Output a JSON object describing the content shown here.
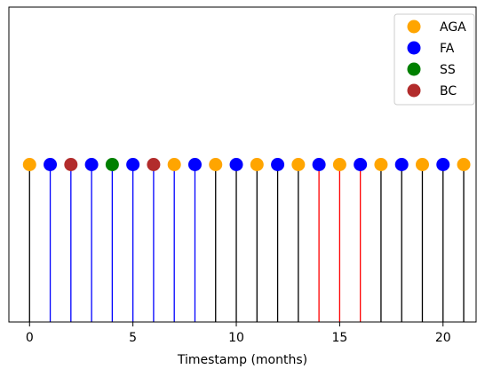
{
  "chart_data": {
    "type": "stem",
    "title": "",
    "xlabel": "Timestamp (months)",
    "ylabel": "",
    "xlim": [
      -1,
      21.6
    ],
    "ylim": [
      0,
      1.0
    ],
    "xticks": [
      0,
      5,
      10,
      15,
      20
    ],
    "yticks": [],
    "legend_position": "top-right",
    "series": [
      {
        "name": "AGA",
        "color": "#FFA500"
      },
      {
        "name": "FA",
        "color": "#0000FF"
      },
      {
        "name": "SS",
        "color": "#008000"
      },
      {
        "name": "BC",
        "color": "#B22C2C"
      }
    ],
    "line_colors": {
      "black": "#000000",
      "blue": "#0000FF",
      "red": "#FF0000"
    },
    "points": [
      {
        "x": 0,
        "y": 0.5,
        "series": "AGA",
        "line": "black"
      },
      {
        "x": 1,
        "y": 0.5,
        "series": "FA",
        "line": "blue"
      },
      {
        "x": 2,
        "y": 0.5,
        "series": "BC",
        "line": "blue"
      },
      {
        "x": 3,
        "y": 0.5,
        "series": "FA",
        "line": "blue"
      },
      {
        "x": 4,
        "y": 0.5,
        "series": "SS",
        "line": "blue"
      },
      {
        "x": 5,
        "y": 0.5,
        "series": "FA",
        "line": "blue"
      },
      {
        "x": 6,
        "y": 0.5,
        "series": "BC",
        "line": "blue"
      },
      {
        "x": 7,
        "y": 0.5,
        "series": "AGA",
        "line": "blue"
      },
      {
        "x": 8,
        "y": 0.5,
        "series": "FA",
        "line": "blue"
      },
      {
        "x": 9,
        "y": 0.5,
        "series": "AGA",
        "line": "black"
      },
      {
        "x": 10,
        "y": 0.5,
        "series": "FA",
        "line": "black"
      },
      {
        "x": 11,
        "y": 0.5,
        "series": "AGA",
        "line": "black"
      },
      {
        "x": 12,
        "y": 0.5,
        "series": "FA",
        "line": "black"
      },
      {
        "x": 13,
        "y": 0.5,
        "series": "AGA",
        "line": "black"
      },
      {
        "x": 14,
        "y": 0.5,
        "series": "FA",
        "line": "red"
      },
      {
        "x": 15,
        "y": 0.5,
        "series": "AGA",
        "line": "red"
      },
      {
        "x": 16,
        "y": 0.5,
        "series": "FA",
        "line": "red"
      },
      {
        "x": 17,
        "y": 0.5,
        "series": "AGA",
        "line": "black"
      },
      {
        "x": 18,
        "y": 0.5,
        "series": "FA",
        "line": "black"
      },
      {
        "x": 19,
        "y": 0.5,
        "series": "AGA",
        "line": "black"
      },
      {
        "x": 20,
        "y": 0.5,
        "series": "FA",
        "line": "black"
      },
      {
        "x": 21,
        "y": 0.5,
        "series": "AGA",
        "line": "black"
      }
    ]
  }
}
